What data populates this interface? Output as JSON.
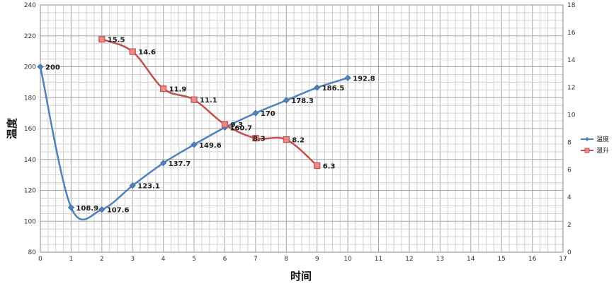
{
  "chart_data": {
    "type": "line",
    "title": "",
    "xlabel": "时间",
    "ylabel": "温度",
    "y2label": "",
    "xlim": [
      0,
      17
    ],
    "ylim": [
      80,
      240
    ],
    "y2lim": [
      0,
      18
    ],
    "x_ticks": [
      "0",
      "1",
      "2",
      "3",
      "4",
      "5",
      "6",
      "7",
      "8",
      "9",
      "10",
      "11",
      "12",
      "13",
      "14",
      "15",
      "16",
      "17"
    ],
    "y_ticks": [
      "80",
      "100",
      "120",
      "140",
      "160",
      "180",
      "200",
      "220",
      "240"
    ],
    "y2_ticks": [
      "0",
      "2",
      "4",
      "6",
      "8",
      "10",
      "12",
      "14",
      "16",
      "18"
    ],
    "grid": true,
    "legend_position": "right",
    "series": [
      {
        "name": "温度",
        "axis": "left",
        "color": "#4f81bd",
        "marker": "diamond",
        "x": [
          0,
          1,
          2,
          3,
          4,
          5,
          6,
          7,
          8,
          9,
          10
        ],
        "values": [
          200,
          108.9,
          107.6,
          123.1,
          137.7,
          149.6,
          160.7,
          170,
          178.3,
          186.5,
          192.8
        ],
        "labels": [
          "200",
          "108.9",
          "107.6",
          "123.1",
          "137.7",
          "149.6",
          "160.7",
          "170",
          "178.3",
          "186.5",
          "192.8"
        ]
      },
      {
        "name": "温升",
        "axis": "right",
        "color": "#c0504d",
        "marker": "square",
        "x": [
          2,
          3,
          4,
          5,
          6,
          7,
          8,
          9
        ],
        "values": [
          15.5,
          14.6,
          11.9,
          11.1,
          9.3,
          8.3,
          8.2,
          6.3
        ],
        "labels": [
          "15.5",
          "14.6",
          "11.9",
          "11.1",
          "9.3",
          "8.3",
          "8.2",
          "6.3"
        ]
      }
    ]
  }
}
